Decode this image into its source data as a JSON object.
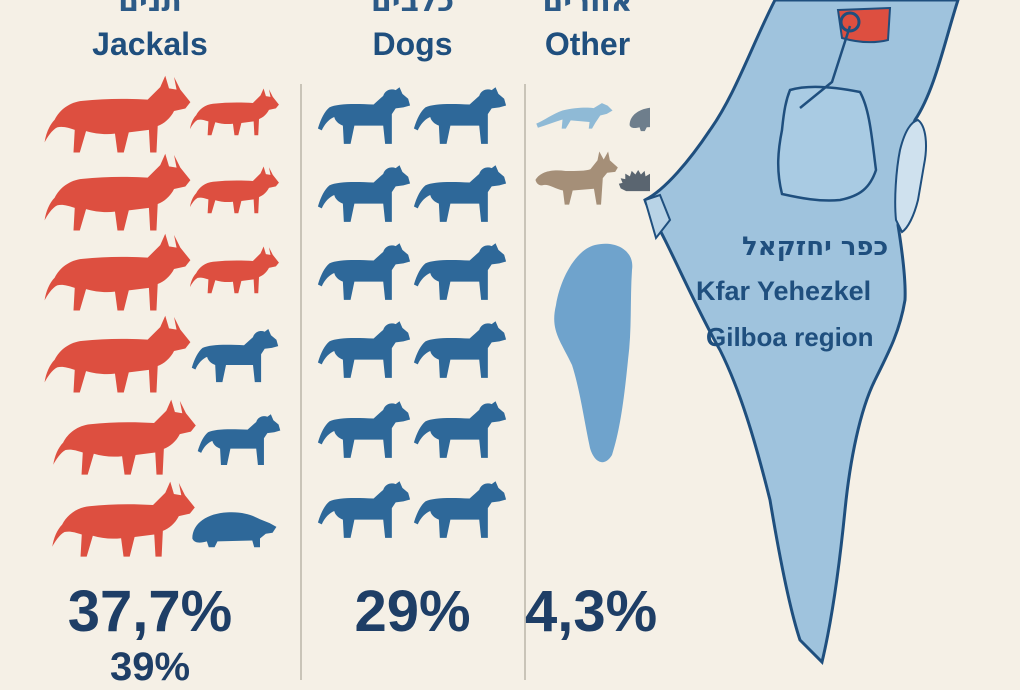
{
  "categories": [
    {
      "id": "jackals",
      "hebrew": "תנים",
      "english": "Jackals",
      "percent": "37,7%",
      "percent_secondary": "39%",
      "color": "#dd4f40"
    },
    {
      "id": "dogs",
      "hebrew": "כלבים",
      "english": "Dogs",
      "percent": "29%",
      "color": "#2e6899"
    },
    {
      "id": "other",
      "hebrew": "אחרים",
      "english": "Other",
      "percent": "4,3%",
      "colors": [
        "#8fbad6",
        "#6e7e8c",
        "#a58f78",
        "#5a6570"
      ]
    }
  ],
  "map": {
    "label_hebrew": "כפר יחזקאל",
    "label_english": "Kfar Yehezkel",
    "label_region": "Gilboa region",
    "land_color": "#9fc3dd",
    "water_color": "#6fa3cc",
    "highlight_color": "#dd4f40"
  },
  "icons": [
    "jackal-icon",
    "dog-icon",
    "mongoose-icon",
    "badger-icon",
    "fox-icon",
    "hedgehog-icon",
    "location-marker-icon"
  ]
}
